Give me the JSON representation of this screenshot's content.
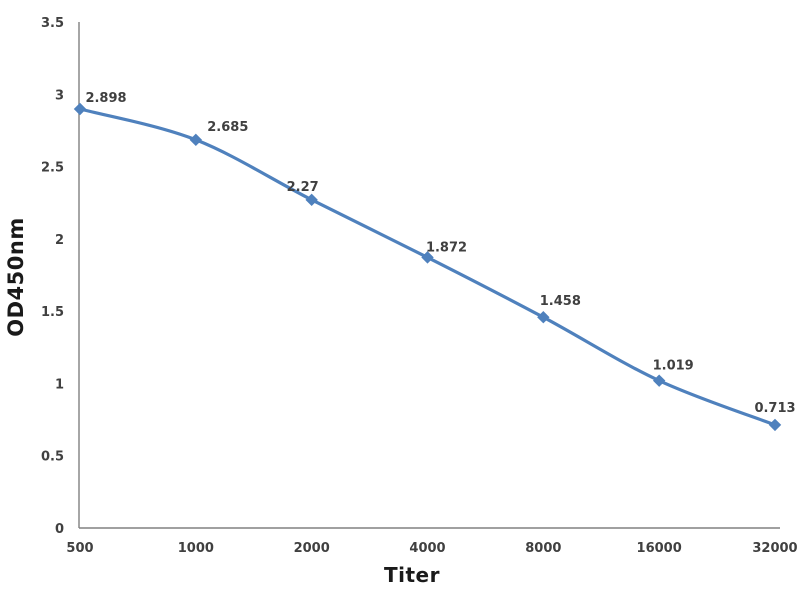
{
  "chart_data": {
    "type": "line",
    "title": "",
    "xlabel": "Titer",
    "ylabel": "OD450nm",
    "categories": [
      "500",
      "1000",
      "2000",
      "4000",
      "8000",
      "16000",
      "32000"
    ],
    "series": [
      {
        "name": "OD450nm",
        "values": [
          2.898,
          2.685,
          2.27,
          1.872,
          1.458,
          1.019,
          0.713
        ],
        "point_labels": [
          "2.898",
          "2.685",
          "2.27",
          "1.872",
          "1.458",
          "1.019",
          "0.713"
        ],
        "color": "#4f81bd",
        "marker": "diamond",
        "smooth": true
      }
    ],
    "y_ticks": [
      0,
      0.5,
      1,
      1.5,
      2,
      2.5,
      3,
      3.5
    ],
    "y_tick_labels": [
      "0",
      "0.5",
      "1",
      "1.5",
      "2",
      "2.5",
      "3",
      "3.5"
    ],
    "ylim": [
      0,
      3.5
    ],
    "grid": false,
    "legend": "none",
    "colors": {
      "axis": "#808080",
      "tick_text": "#404040",
      "data_label_text": "#404040",
      "axis_title_text": "#1a1a1a",
      "background": "#ffffff"
    }
  }
}
